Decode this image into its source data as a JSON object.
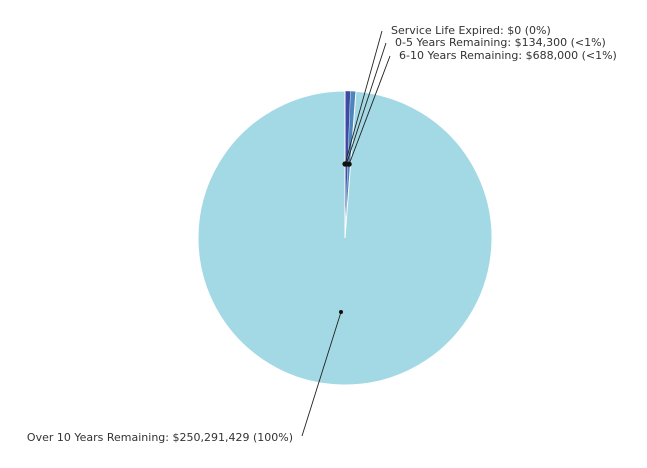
{
  "chart_data": {
    "type": "pie",
    "slices": [
      {
        "label": "Service Life Expired: $0 (0%)",
        "value": 0,
        "color": "#6b4aa0"
      },
      {
        "label": "0-5 Years Remaining: $134,300 (<1%)",
        "value": 134300,
        "color": "#3f4aa2"
      },
      {
        "label": "6-10 Years Remaining: $688,000 (<1%)",
        "value": 688000,
        "color": "#4d86bd"
      },
      {
        "label": "Over 10 Years Remaining: $250,291,429 (100%)",
        "value": 250291429,
        "color": "#a2d9e5"
      }
    ],
    "title": "",
    "legend": "none"
  }
}
